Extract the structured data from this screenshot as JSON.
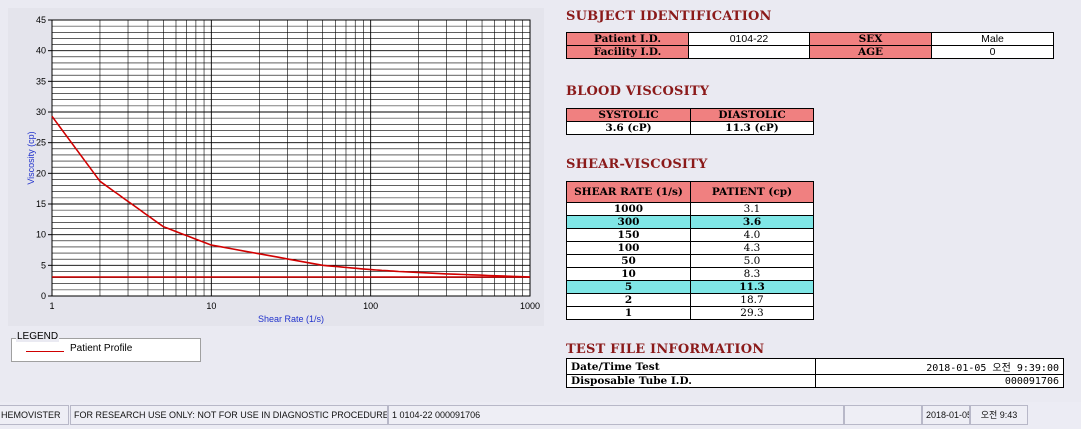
{
  "chart_data": {
    "type": "line",
    "xscale": "log",
    "xlim": [
      1,
      1000
    ],
    "ylim": [
      0,
      45
    ],
    "xlabel": "Shear Rate (1/s)",
    "ylabel": "Viscosity (cp)",
    "x_ticks": [
      "1",
      "10",
      "100",
      "1000"
    ],
    "y_ticks": [
      "0",
      "5",
      "10",
      "15",
      "20",
      "25",
      "30",
      "35",
      "40",
      "45"
    ],
    "grid": true,
    "series": [
      {
        "name": "Patient Profile",
        "x": [
          1,
          2,
          5,
          10,
          50,
          100,
          150,
          300,
          1000
        ],
        "y": [
          29.3,
          18.7,
          11.3,
          8.3,
          5.0,
          4.3,
          4.0,
          3.6,
          3.1
        ],
        "color": "#d00000"
      },
      {
        "x": [
          1,
          1000
        ],
        "y": [
          3.1,
          3.1
        ],
        "color": "#d00000"
      }
    ]
  },
  "legend": {
    "title": "LEGEND",
    "label": "Patient Profile"
  },
  "subject": {
    "title": "SUBJECT IDENTIFICATION",
    "patient_id_label": "Patient I.D.",
    "patient_id": "0104-22",
    "sex_label": "SEX",
    "sex": "Male",
    "facility_label": "Facility I.D.",
    "facility": "",
    "age_label": "AGE",
    "age": "0"
  },
  "blood": {
    "title": "BLOOD VISCOSITY",
    "systolic_label": "SYSTOLIC",
    "diastolic_label": "DIASTOLIC",
    "systolic": "3.6 (cP)",
    "diastolic": "11.3 (cP)"
  },
  "shear": {
    "title": "SHEAR-VISCOSITY",
    "col1": "SHEAR RATE (1/s)",
    "col2": "PATIENT (cp)",
    "rows": [
      {
        "rate": "1000",
        "val": "3.1",
        "hl": false
      },
      {
        "rate": "300",
        "val": "3.6",
        "hl": true
      },
      {
        "rate": "150",
        "val": "4.0",
        "hl": false
      },
      {
        "rate": "100",
        "val": "4.3",
        "hl": false
      },
      {
        "rate": "50",
        "val": "5.0",
        "hl": false
      },
      {
        "rate": "10",
        "val": "8.3",
        "hl": false
      },
      {
        "rate": "5",
        "val": "11.3",
        "hl": true
      },
      {
        "rate": "2",
        "val": "18.7",
        "hl": false
      },
      {
        "rate": "1",
        "val": "29.3",
        "hl": false
      }
    ]
  },
  "testfile": {
    "title": "TEST FILE INFORMATION",
    "date_label": "Date/Time Test",
    "date": "2018-01-05  오전 9:39:00",
    "tube_label": "Disposable Tube I.D.",
    "tube": "000091706"
  },
  "statusbar": {
    "app": "HEMOVISTER",
    "notice": "FOR RESEARCH USE ONLY: NOT FOR USE IN DIAGNOSTIC PROCEDURES",
    "record": "1  0104-22  000091706",
    "date": "2018-01-05",
    "time": "오전 9:43"
  }
}
